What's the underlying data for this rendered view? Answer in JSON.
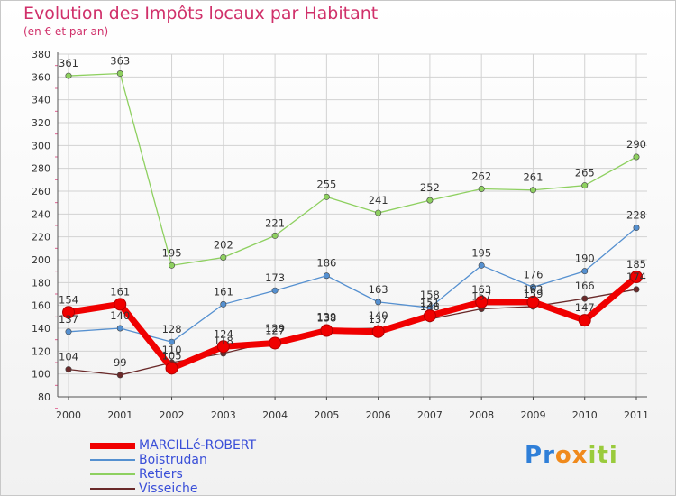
{
  "chart_data": {
    "type": "line",
    "title": "Evolution des Impôts locaux par Habitant",
    "subtitle": "(en € et par an)",
    "xlabel": "",
    "ylabel": "",
    "categories": [
      "2000",
      "2001",
      "2002",
      "2003",
      "2004",
      "2005",
      "2006",
      "2007",
      "2008",
      "2009",
      "2010",
      "2011"
    ],
    "ylim": [
      80,
      380
    ],
    "yticks": [
      80,
      100,
      120,
      140,
      160,
      180,
      200,
      220,
      240,
      260,
      280,
      300,
      320,
      340,
      360,
      380
    ],
    "legend_position": "bottom-left",
    "series": [
      {
        "name": "MARCILLé-ROBERT",
        "color": "#f00000",
        "values": [
          154,
          161,
          105,
          124,
          127,
          138,
          137,
          151,
          163,
          163,
          147,
          185
        ]
      },
      {
        "name": "Boistrudan",
        "color": "#5590d0",
        "values": [
          137,
          140,
          128,
          161,
          173,
          186,
          163,
          158,
          195,
          176,
          190,
          228
        ]
      },
      {
        "name": "Retiers",
        "color": "#8ed060",
        "values": [
          361,
          363,
          195,
          202,
          221,
          255,
          241,
          252,
          262,
          261,
          265,
          290
        ]
      },
      {
        "name": "Visseiche",
        "color": "#6a2a2a",
        "values": [
          104,
          99,
          110,
          118,
          129,
          139,
          140,
          148,
          157,
          159,
          166,
          174
        ]
      }
    ]
  },
  "logo": {
    "text": "Proxiti",
    "letters": [
      "P",
      "r",
      "o",
      "x",
      "i",
      "t",
      "i"
    ],
    "colors": [
      "#2f7fd8",
      "#2f7fd8",
      "#f08a1c",
      "#f08a1c",
      "#9acb3c",
      "#9acb3c",
      "#9acb3c"
    ]
  }
}
